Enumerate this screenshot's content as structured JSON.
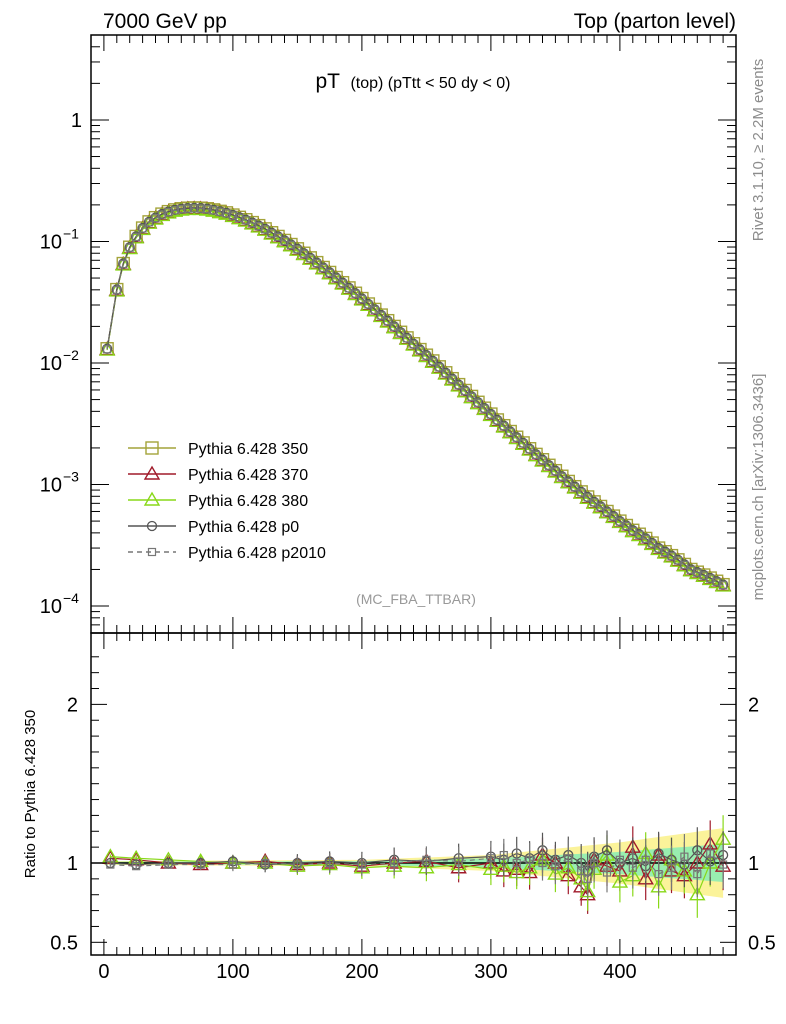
{
  "header": {
    "left": "7000 GeV pp",
    "right": "Top (parton level)"
  },
  "side_labels": {
    "rivet": "Rivet 3.1.10, ≥ 2.2M events",
    "mcplots": "mcplots.cern.ch [arXiv:1306.3436]"
  },
  "analysis_tag": "(MC_FBA_TTBAR)",
  "chart_data": [
    {
      "type": "line",
      "panel": "main",
      "title_main": "pT",
      "title_sub": "(top)  (pTtt < 50 dy < 0)",
      "xlim": [
        -10,
        490
      ],
      "ylim": [
        6e-05,
        5
      ],
      "yscale": "log",
      "y_ticks": [
        {
          "value": 1,
          "label": "1"
        },
        {
          "value": 0.1,
          "base": "10",
          "exp": "−1"
        },
        {
          "value": 0.01,
          "base": "10",
          "exp": "−2"
        },
        {
          "value": 0.001,
          "base": "10",
          "exp": "−3"
        },
        {
          "value": 0.0001,
          "base": "10",
          "exp": "−4"
        }
      ],
      "legend_position": "lower-left",
      "series": [
        {
          "name": "Pythia 6.428 350",
          "color": "#a4a43a",
          "marker": "square-open",
          "dash": "solid"
        },
        {
          "name": "Pythia 6.428 370",
          "color": "#a01a2a",
          "marker": "triangle-open",
          "dash": "solid"
        },
        {
          "name": "Pythia 6.428 380",
          "color": "#88d818",
          "marker": "triangle-open",
          "dash": "solid"
        },
        {
          "name": "Pythia 6.428 p0",
          "color": "#555555",
          "marker": "circle-open",
          "dash": "solid"
        },
        {
          "name": "Pythia 6.428 p2010",
          "color": "#777777",
          "marker": "square-open-small",
          "dash": "dashed"
        }
      ],
      "x": [
        2.5,
        10,
        15,
        20,
        25,
        30,
        35,
        40,
        45,
        50,
        55,
        60,
        65,
        70,
        75,
        80,
        85,
        90,
        95,
        100,
        105,
        110,
        115,
        120,
        125,
        130,
        135,
        140,
        145,
        150,
        155,
        160,
        165,
        170,
        175,
        180,
        185,
        190,
        195,
        200,
        205,
        210,
        215,
        220,
        225,
        230,
        235,
        240,
        245,
        250,
        255,
        260,
        265,
        270,
        275,
        280,
        285,
        290,
        295,
        300,
        305,
        310,
        315,
        320,
        325,
        330,
        335,
        340,
        345,
        350,
        355,
        360,
        365,
        370,
        375,
        380,
        385,
        390,
        395,
        400,
        405,
        410,
        415,
        420,
        425,
        430,
        435,
        440,
        445,
        450,
        455,
        460,
        465,
        470,
        475,
        480
      ],
      "y": [
        0.0131,
        0.0402,
        0.0658,
        0.0897,
        0.11,
        0.129,
        0.145,
        0.157,
        0.168,
        0.176,
        0.182,
        0.186,
        0.188,
        0.189,
        0.188,
        0.186,
        0.182,
        0.177,
        0.172,
        0.165,
        0.158,
        0.151,
        0.143,
        0.135,
        0.127,
        0.118,
        0.11,
        0.102,
        0.0944,
        0.087,
        0.08,
        0.0733,
        0.067,
        0.0611,
        0.0556,
        0.0505,
        0.0458,
        0.0415,
        0.0375,
        0.0339,
        0.0306,
        0.0276,
        0.0248,
        0.0223,
        0.02,
        0.0179,
        0.0161,
        0.0144,
        0.0129,
        0.0116,
        0.0104,
        0.0093,
        0.00831,
        0.00743,
        0.00664,
        0.00594,
        0.00531,
        0.00475,
        0.00425,
        0.0038,
        0.0034,
        0.00305,
        0.00273,
        0.00245,
        0.0022,
        0.00197,
        0.00177,
        0.0016,
        0.00144,
        0.0013,
        0.00117,
        0.00106,
        0.00096,
        0.00087,
        0.00079,
        0.00072,
        0.00066,
        0.0006,
        0.00055,
        0.0005,
        0.00046,
        0.00042,
        0.00039,
        0.00036,
        0.00033,
        0.0003,
        0.00028,
        0.00026,
        0.00024,
        0.00022,
        0.0002,
        0.00019,
        0.00018,
        0.00017,
        0.00016,
        0.00015
      ]
    },
    {
      "type": "line",
      "panel": "ratio",
      "ylabel": "Ratio to Pythia 6.428 350",
      "xlim": [
        -10,
        490
      ],
      "ylim": [
        0.42,
        2.45
      ],
      "x_ticks": [
        0,
        100,
        200,
        300,
        400
      ],
      "y_ticks": [
        {
          "value": 0.5,
          "label": "0.5"
        },
        {
          "value": 1,
          "label": "1"
        },
        {
          "value": 2,
          "label": "2"
        }
      ],
      "reference_value": 1,
      "band_halfwidth": {
        "x": [
          0,
          200,
          300,
          400,
          480
        ],
        "yellow": [
          0.012,
          0.02,
          0.05,
          0.13,
          0.22
        ],
        "green": [
          0.008,
          0.012,
          0.03,
          0.07,
          0.12
        ]
      },
      "series": [
        {
          "name": "Pythia 6.428 370",
          "x": [
            5,
            25,
            50,
            75,
            100,
            125,
            150,
            175,
            200,
            225,
            250,
            275,
            300,
            310,
            320,
            330,
            340,
            350,
            360,
            370,
            375,
            380,
            390,
            400,
            410,
            420,
            430,
            440,
            450,
            460,
            470,
            480
          ],
          "y": [
            1.03,
            1.02,
            1.0,
            0.99,
            1.0,
            1.01,
            0.99,
            1.0,
            0.98,
            1.0,
            1.01,
            0.97,
            1.0,
            0.95,
            0.96,
            0.94,
            1.05,
            1.0,
            0.92,
            0.85,
            0.8,
            1.02,
            0.98,
            0.95,
            1.1,
            0.9,
            1.05,
            0.95,
            0.92,
            1.0,
            1.12,
            0.98
          ]
        },
        {
          "name": "Pythia 6.428 380",
          "x": [
            5,
            25,
            50,
            75,
            100,
            125,
            150,
            175,
            200,
            225,
            250,
            275,
            300,
            310,
            320,
            330,
            340,
            350,
            360,
            370,
            375,
            380,
            390,
            400,
            410,
            420,
            430,
            440,
            450,
            460,
            470,
            480
          ],
          "y": [
            1.04,
            1.03,
            1.02,
            1.01,
            1.0,
            1.0,
            0.98,
            0.99,
            0.97,
            0.98,
            0.97,
            0.99,
            0.96,
            0.98,
            0.94,
            0.97,
            1.02,
            0.93,
            0.97,
            0.9,
            0.82,
            0.96,
            1.05,
            0.88,
            0.92,
            1.06,
            0.85,
            1.02,
            0.95,
            0.8,
            1.0,
            1.15
          ]
        },
        {
          "name": "Pythia 6.428 p0",
          "x": [
            5,
            25,
            50,
            75,
            100,
            125,
            150,
            175,
            200,
            225,
            250,
            275,
            300,
            310,
            320,
            330,
            340,
            350,
            360,
            370,
            375,
            380,
            390,
            400,
            410,
            420,
            430,
            440,
            450,
            460,
            470,
            480
          ],
          "y": [
            1.0,
            0.99,
            1.0,
            1.0,
            1.01,
            0.99,
            1.0,
            1.01,
            1.0,
            1.02,
            1.01,
            1.03,
            1.04,
            1.02,
            1.06,
            1.03,
            1.08,
            1.02,
            1.05,
            1.0,
            0.95,
            1.04,
            1.08,
            1.0,
            1.03,
            0.98,
            1.06,
            1.02,
            0.99,
            1.08,
            1.01,
            1.05
          ]
        },
        {
          "name": "Pythia 6.428 p2010",
          "x": [
            5,
            25,
            50,
            75,
            100,
            125,
            150,
            175,
            200,
            225,
            250,
            275,
            300,
            310,
            320,
            330,
            340,
            350,
            360,
            370,
            375,
            380,
            390,
            400,
            410,
            420,
            430,
            440,
            450,
            460,
            470,
            480
          ],
          "y": [
            0.99,
            0.98,
            0.99,
            0.99,
            0.99,
            1.0,
            0.99,
            1.0,
            0.99,
            1.0,
            1.02,
            1.01,
            1.03,
            1.05,
            1.0,
            1.02,
            1.0,
            0.98,
            1.03,
            0.95,
            0.9,
            1.0,
            0.94,
            1.02,
            0.97,
            1.02,
            0.93,
            0.97,
            1.04,
            0.93,
            1.06,
            0.99
          ]
        }
      ]
    }
  ]
}
